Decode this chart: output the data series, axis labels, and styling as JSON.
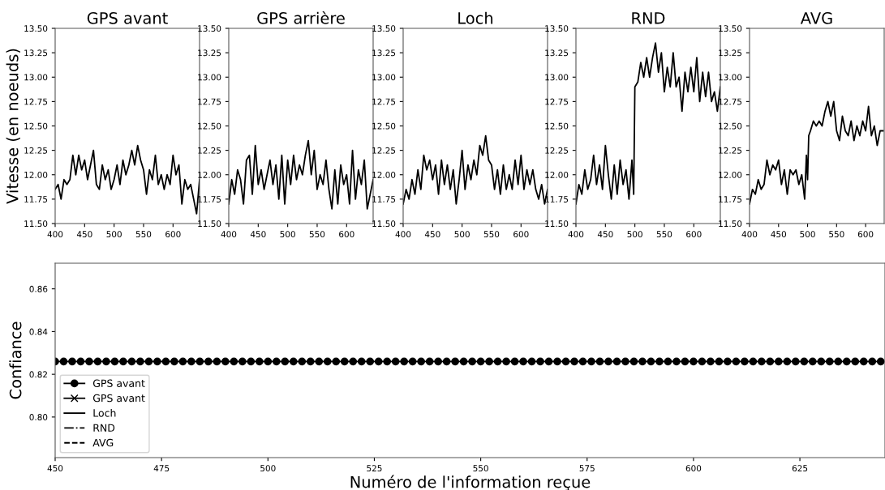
{
  "chart_data": [
    {
      "type": "line",
      "title": "GPS avant",
      "ylabel": "Vitesse (en noeuds)",
      "xlim": [
        400,
        645
      ],
      "xticks": [
        400,
        450,
        500,
        550,
        600
      ],
      "ylim": [
        11.5,
        13.5
      ],
      "yticks": [
        {
          "value": 11.5,
          "label": "11.50"
        },
        {
          "value": 11.75,
          "label": "11.75"
        },
        {
          "value": 12.0,
          "label": "12.00"
        },
        {
          "value": 12.25,
          "label": "12.25"
        },
        {
          "value": 12.5,
          "label": "12.50"
        },
        {
          "value": 12.75,
          "label": "12.75"
        },
        {
          "value": 13.0,
          "label": "13.00"
        },
        {
          "value": 13.25,
          "label": "13.25"
        },
        {
          "value": 13.5,
          "label": "13.50"
        }
      ],
      "grid": false,
      "legend": false,
      "x": [
        400,
        405,
        410,
        415,
        420,
        425,
        430,
        435,
        440,
        445,
        450,
        455,
        460,
        465,
        470,
        475,
        480,
        485,
        490,
        495,
        500,
        505,
        510,
        515,
        520,
        525,
        530,
        535,
        540,
        545,
        550,
        555,
        560,
        565,
        570,
        575,
        580,
        585,
        590,
        595,
        600,
        605,
        610,
        615,
        620,
        625,
        630,
        635,
        640,
        645
      ],
      "series": [
        {
          "color": "#000000",
          "values": [
            11.85,
            11.9,
            11.75,
            11.95,
            11.9,
            11.95,
            12.2,
            12.0,
            12.2,
            12.05,
            12.15,
            11.95,
            12.1,
            12.25,
            11.9,
            11.85,
            12.1,
            11.95,
            12.05,
            11.85,
            11.95,
            12.1,
            11.9,
            12.15,
            12.0,
            12.1,
            12.25,
            12.1,
            12.3,
            12.15,
            12.05,
            11.8,
            12.05,
            11.95,
            12.2,
            11.9,
            12.0,
            11.85,
            12.0,
            11.9,
            12.2,
            12.0,
            12.1,
            11.7,
            11.95,
            11.85,
            11.9,
            11.75,
            11.6,
            11.95
          ]
        }
      ]
    },
    {
      "type": "line",
      "title": "GPS arrière",
      "xlim": [
        400,
        645
      ],
      "xticks": [
        400,
        450,
        500,
        550,
        600
      ],
      "ylim": [
        11.5,
        13.5
      ],
      "yticks": [
        {
          "value": 11.5,
          "label": "11.50"
        },
        {
          "value": 11.75,
          "label": "11.75"
        },
        {
          "value": 12.0,
          "label": "12.00"
        },
        {
          "value": 12.25,
          "label": "12.25"
        },
        {
          "value": 12.5,
          "label": "12.50"
        },
        {
          "value": 12.75,
          "label": "12.75"
        },
        {
          "value": 13.0,
          "label": "13.00"
        },
        {
          "value": 13.25,
          "label": "13.25"
        },
        {
          "value": 13.5,
          "label": "13.50"
        }
      ],
      "grid": false,
      "legend": false,
      "x": [
        400,
        405,
        410,
        415,
        420,
        425,
        430,
        435,
        440,
        445,
        450,
        455,
        460,
        465,
        470,
        475,
        480,
        485,
        490,
        495,
        500,
        505,
        510,
        515,
        520,
        525,
        530,
        535,
        540,
        545,
        550,
        555,
        560,
        565,
        570,
        575,
        580,
        585,
        590,
        595,
        600,
        605,
        610,
        615,
        620,
        625,
        630,
        635,
        640,
        645
      ],
      "series": [
        {
          "color": "#000000",
          "values": [
            11.7,
            11.95,
            11.8,
            12.05,
            11.95,
            11.7,
            12.15,
            12.2,
            11.8,
            12.3,
            11.9,
            12.05,
            11.85,
            12.0,
            12.15,
            11.9,
            12.1,
            11.75,
            12.2,
            11.7,
            12.15,
            11.9,
            12.2,
            11.95,
            12.1,
            12.0,
            12.2,
            12.35,
            12.0,
            12.25,
            11.85,
            12.0,
            11.9,
            12.15,
            11.85,
            11.65,
            12.05,
            11.7,
            12.1,
            11.9,
            12.0,
            11.7,
            12.25,
            11.75,
            12.05,
            11.9,
            12.15,
            11.65,
            11.8,
            11.95
          ]
        }
      ]
    },
    {
      "type": "line",
      "title": "Loch",
      "xlim": [
        400,
        645
      ],
      "xticks": [
        400,
        450,
        500,
        550,
        600
      ],
      "ylim": [
        11.5,
        13.5
      ],
      "yticks": [
        {
          "value": 11.5,
          "label": "11.50"
        },
        {
          "value": 11.75,
          "label": "11.75"
        },
        {
          "value": 12.0,
          "label": "12.00"
        },
        {
          "value": 12.25,
          "label": "12.25"
        },
        {
          "value": 12.5,
          "label": "12.50"
        },
        {
          "value": 12.75,
          "label": "12.75"
        },
        {
          "value": 13.0,
          "label": "13.00"
        },
        {
          "value": 13.25,
          "label": "13.25"
        },
        {
          "value": 13.5,
          "label": "13.50"
        }
      ],
      "grid": false,
      "legend": false,
      "x": [
        400,
        405,
        410,
        415,
        420,
        425,
        430,
        435,
        440,
        445,
        450,
        455,
        460,
        465,
        470,
        475,
        480,
        485,
        490,
        495,
        500,
        505,
        510,
        515,
        520,
        525,
        530,
        535,
        540,
        545,
        550,
        555,
        560,
        565,
        570,
        575,
        580,
        585,
        590,
        595,
        600,
        605,
        610,
        615,
        620,
        625,
        630,
        635,
        640,
        645
      ],
      "series": [
        {
          "color": "#000000",
          "values": [
            11.7,
            11.85,
            11.75,
            11.95,
            11.8,
            12.05,
            11.85,
            12.2,
            12.05,
            12.15,
            11.95,
            12.1,
            11.8,
            12.15,
            11.9,
            12.1,
            11.85,
            12.05,
            11.7,
            11.95,
            12.25,
            11.85,
            12.1,
            11.95,
            12.15,
            12.0,
            12.3,
            12.2,
            12.4,
            12.15,
            12.1,
            11.85,
            12.05,
            11.8,
            12.1,
            11.85,
            12.0,
            11.85,
            12.15,
            11.9,
            12.2,
            11.85,
            12.05,
            11.9,
            12.05,
            11.85,
            11.75,
            11.9,
            11.7,
            11.85
          ]
        }
      ]
    },
    {
      "type": "line",
      "title": "RND",
      "xlim": [
        400,
        645
      ],
      "xticks": [
        400,
        450,
        500,
        550,
        600
      ],
      "ylim": [
        11.5,
        13.5
      ],
      "yticks": [
        {
          "value": 11.5,
          "label": "11.50"
        },
        {
          "value": 11.75,
          "label": "11.75"
        },
        {
          "value": 12.0,
          "label": "12.00"
        },
        {
          "value": 12.25,
          "label": "12.25"
        },
        {
          "value": 12.5,
          "label": "12.50"
        },
        {
          "value": 12.75,
          "label": "12.75"
        },
        {
          "value": 13.0,
          "label": "13.00"
        },
        {
          "value": 13.25,
          "label": "13.25"
        },
        {
          "value": 13.5,
          "label": "13.50"
        }
      ],
      "grid": false,
      "legend": false,
      "x": [
        400,
        405,
        410,
        415,
        420,
        425,
        430,
        435,
        440,
        445,
        450,
        455,
        460,
        465,
        470,
        475,
        480,
        485,
        490,
        495,
        498,
        500,
        505,
        510,
        515,
        520,
        525,
        530,
        535,
        540,
        545,
        550,
        555,
        560,
        565,
        570,
        575,
        580,
        585,
        590,
        595,
        600,
        605,
        610,
        615,
        620,
        625,
        630,
        635,
        640,
        645
      ],
      "series": [
        {
          "color": "#000000",
          "values": [
            11.7,
            11.9,
            11.8,
            12.05,
            11.85,
            11.95,
            12.2,
            11.9,
            12.1,
            11.85,
            12.3,
            12.0,
            11.75,
            12.1,
            11.8,
            12.15,
            11.9,
            12.05,
            11.75,
            12.15,
            11.8,
            12.9,
            12.95,
            13.15,
            13.0,
            13.2,
            13.0,
            13.2,
            13.35,
            13.05,
            13.25,
            12.85,
            13.1,
            12.9,
            13.25,
            12.9,
            13.0,
            12.65,
            13.05,
            12.85,
            13.1,
            12.85,
            13.2,
            12.75,
            13.05,
            12.8,
            13.05,
            12.75,
            12.85,
            12.65,
            12.9
          ]
        }
      ]
    },
    {
      "type": "line",
      "title": "AVG",
      "xlim": [
        400,
        632
      ],
      "xticks": [
        400,
        450,
        500,
        550,
        600
      ],
      "ylim": [
        11.5,
        13.5
      ],
      "yticks": [
        {
          "value": 11.5,
          "label": "11.50"
        },
        {
          "value": 11.75,
          "label": "11.75"
        },
        {
          "value": 12.0,
          "label": "12.00"
        },
        {
          "value": 12.25,
          "label": "12.25"
        },
        {
          "value": 12.5,
          "label": "12.50"
        },
        {
          "value": 12.75,
          "label": "12.75"
        },
        {
          "value": 13.0,
          "label": "13.00"
        },
        {
          "value": 13.25,
          "label": "13.25"
        },
        {
          "value": 13.5,
          "label": "13.50"
        }
      ],
      "grid": false,
      "legend": false,
      "x": [
        400,
        405,
        410,
        415,
        420,
        425,
        430,
        435,
        440,
        445,
        450,
        455,
        460,
        465,
        470,
        475,
        480,
        485,
        490,
        495,
        498,
        500,
        502,
        505,
        510,
        515,
        520,
        525,
        530,
        535,
        540,
        545,
        550,
        555,
        560,
        565,
        570,
        575,
        580,
        585,
        590,
        595,
        600,
        605,
        610,
        615,
        620,
        625,
        630
      ],
      "series": [
        {
          "color": "#000000",
          "values": [
            11.7,
            11.85,
            11.8,
            11.95,
            11.85,
            11.9,
            12.15,
            12.0,
            12.1,
            12.05,
            12.15,
            11.9,
            12.05,
            11.8,
            12.05,
            12.0,
            12.05,
            11.9,
            12.0,
            11.75,
            12.2,
            11.95,
            12.4,
            12.45,
            12.55,
            12.5,
            12.55,
            12.5,
            12.65,
            12.75,
            12.6,
            12.75,
            12.45,
            12.35,
            12.6,
            12.45,
            12.4,
            12.55,
            12.35,
            12.5,
            12.4,
            12.55,
            12.45,
            12.7,
            12.4,
            12.5,
            12.3,
            12.45,
            12.45
          ]
        }
      ]
    },
    {
      "type": "line",
      "xlabel": "Numéro de l'information reçue",
      "ylabel": "Confiance",
      "xlim": [
        450,
        645
      ],
      "xticks": [
        450,
        475,
        500,
        525,
        550,
        575,
        600,
        625
      ],
      "ylim": [
        0.781,
        0.872
      ],
      "yticks": [
        {
          "value": 0.8,
          "label": "0.80"
        },
        {
          "value": 0.82,
          "label": "0.82"
        },
        {
          "value": 0.84,
          "label": "0.84"
        },
        {
          "value": 0.86,
          "label": "0.86"
        }
      ],
      "grid": false,
      "legend": "bottom left",
      "x": [
        450,
        452,
        454,
        456,
        458,
        460,
        462,
        464,
        466,
        468,
        470,
        472,
        474,
        476,
        478,
        480,
        482,
        484,
        486,
        488,
        490,
        492,
        494,
        496,
        498,
        500,
        502,
        504,
        506,
        508,
        510,
        512,
        514,
        516,
        518,
        520,
        522,
        524,
        526,
        528,
        530,
        532,
        534,
        536,
        538,
        540,
        542,
        544,
        546,
        548,
        550,
        552,
        554,
        556,
        558,
        560,
        562,
        564,
        566,
        568,
        570,
        572,
        574,
        576,
        578,
        580,
        582,
        584,
        586,
        588,
        590,
        592,
        594,
        596,
        598,
        600,
        602,
        604,
        606,
        608,
        610,
        612,
        614,
        616,
        618,
        620,
        622,
        624,
        626,
        628,
        630,
        632,
        634,
        636,
        638,
        640,
        642,
        644
      ],
      "series": [
        {
          "name": "GPS avant",
          "color": "#000000",
          "marker": "circle",
          "line_style": "solid",
          "values": [
            0.826,
            0.826,
            0.826,
            0.826,
            0.826,
            0.826,
            0.826,
            0.826,
            0.826,
            0.826,
            0.826,
            0.826,
            0.826,
            0.826,
            0.826,
            0.826,
            0.826,
            0.826,
            0.826,
            0.826,
            0.826,
            0.826,
            0.826,
            0.826,
            0.826,
            0.826,
            0.826,
            0.826,
            0.826,
            0.826,
            0.826,
            0.826,
            0.826,
            0.826,
            0.826,
            0.826,
            0.826,
            0.826,
            0.826,
            0.826,
            0.826,
            0.826,
            0.826,
            0.826,
            0.826,
            0.826,
            0.826,
            0.826,
            0.826,
            0.826,
            0.826,
            0.826,
            0.826,
            0.826,
            0.826,
            0.826,
            0.826,
            0.826,
            0.826,
            0.826,
            0.826,
            0.826,
            0.826,
            0.826,
            0.826,
            0.826,
            0.826,
            0.826,
            0.826,
            0.826,
            0.826,
            0.826,
            0.826,
            0.826,
            0.826,
            0.826,
            0.826,
            0.826,
            0.826,
            0.826,
            0.826,
            0.826,
            0.826,
            0.826,
            0.826,
            0.826,
            0.826,
            0.826,
            0.826,
            0.826,
            0.826,
            0.826,
            0.826,
            0.826,
            0.826,
            0.826,
            0.826,
            0.826
          ]
        },
        {
          "name": "GPS avant",
          "color": "#000000",
          "marker": "cross",
          "line_style": "solid",
          "values": [
            null,
            null,
            null,
            null,
            null,
            null,
            null,
            null,
            null,
            null,
            null,
            null,
            null,
            null,
            null,
            null,
            null,
            null,
            null,
            null,
            null,
            null,
            null,
            null,
            null,
            null,
            null,
            null,
            null,
            null,
            null,
            null,
            null,
            null,
            null,
            null,
            null,
            null,
            null,
            null,
            null,
            null,
            null,
            null,
            null,
            null,
            null,
            null,
            null,
            null,
            null,
            null,
            null,
            null,
            null,
            null,
            null,
            null,
            null,
            null,
            null,
            null,
            null,
            null,
            null,
            null,
            null,
            null,
            null,
            null,
            null,
            null,
            null,
            null,
            null,
            null,
            null,
            null,
            null,
            null,
            null,
            null,
            null,
            null,
            null,
            null,
            null,
            null,
            null,
            null,
            null,
            null,
            null,
            null,
            null,
            null,
            null,
            null
          ]
        },
        {
          "name": "Loch",
          "color": "#000000",
          "marker": "none",
          "line_style": "solid",
          "values": [
            null,
            null,
            null,
            null,
            null,
            null,
            null,
            null,
            null,
            null,
            null,
            null,
            null,
            null,
            null,
            null,
            null,
            null,
            null,
            null,
            null,
            null,
            null,
            null,
            null,
            null,
            null,
            null,
            null,
            null,
            null,
            null,
            null,
            null,
            null,
            null,
            null,
            null,
            null,
            null,
            null,
            null,
            null,
            null,
            null,
            null,
            null,
            null,
            null,
            null,
            null,
            null,
            null,
            null,
            null,
            null,
            null,
            null,
            null,
            null,
            null,
            null,
            null,
            null,
            null,
            null,
            null,
            null,
            null,
            null,
            null,
            null,
            null,
            null,
            null,
            null,
            null,
            null,
            null,
            null,
            null,
            null,
            null,
            null,
            null,
            null,
            null,
            null,
            null,
            null,
            null,
            null,
            null,
            null,
            null,
            null,
            null,
            null
          ]
        },
        {
          "name": "RND",
          "color": "#000000",
          "marker": "none",
          "line_style": "dashdot",
          "values": [
            null,
            null,
            null,
            null,
            null,
            null,
            null,
            null,
            null,
            null,
            null,
            null,
            null,
            null,
            null,
            null,
            null,
            null,
            null,
            null,
            null,
            null,
            null,
            null,
            null,
            null,
            null,
            null,
            null,
            null,
            null,
            null,
            null,
            null,
            null,
            null,
            null,
            null,
            null,
            null,
            null,
            null,
            null,
            null,
            null,
            null,
            null,
            null,
            null,
            null,
            null,
            null,
            null,
            null,
            null,
            null,
            null,
            null,
            null,
            null,
            null,
            null,
            null,
            null,
            null,
            null,
            null,
            null,
            null,
            null,
            null,
            null,
            null,
            null,
            null,
            null,
            null,
            null,
            null,
            null,
            null,
            null,
            null,
            null,
            null,
            null,
            null,
            null,
            null,
            null,
            null,
            null,
            null,
            null,
            null,
            null,
            null,
            null
          ]
        },
        {
          "name": "AVG",
          "color": "#000000",
          "marker": "none",
          "line_style": "dashed",
          "values": [
            null,
            null,
            null,
            null,
            null,
            null,
            null,
            null,
            null,
            null,
            null,
            null,
            null,
            null,
            null,
            null,
            null,
            null,
            null,
            null,
            null,
            null,
            null,
            null,
            null,
            null,
            null,
            null,
            null,
            null,
            null,
            null,
            null,
            null,
            null,
            null,
            null,
            null,
            null,
            null,
            null,
            null,
            null,
            null,
            null,
            null,
            null,
            null,
            null,
            null,
            null,
            null,
            null,
            null,
            null,
            null,
            null,
            null,
            null,
            null,
            null,
            null,
            null,
            null,
            null,
            null,
            null,
            null,
            null,
            null,
            null,
            null,
            null,
            null,
            null,
            null,
            null,
            null,
            null,
            null,
            null,
            null,
            null,
            null,
            null,
            null,
            null,
            null,
            null,
            null,
            null,
            null,
            null,
            null,
            null,
            null,
            null,
            null
          ]
        }
      ]
    }
  ]
}
